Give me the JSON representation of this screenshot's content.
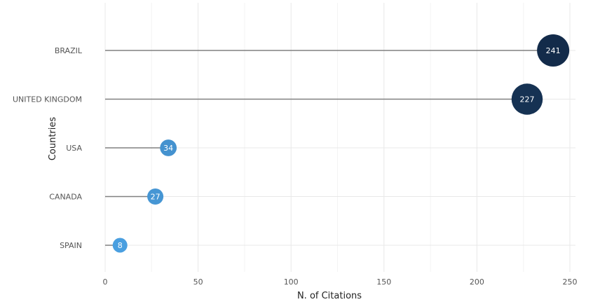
{
  "chart_data": {
    "type": "lollipop",
    "title": "",
    "xlabel": "N. of Citations",
    "ylabel": "Countries",
    "xlim": [
      0,
      250
    ],
    "x_ticks": [
      0,
      50,
      100,
      150,
      200,
      250
    ],
    "grid": true,
    "legend": "none",
    "categories": [
      "BRAZIL",
      "UNITED KINGDOM",
      "USA",
      "CANADA",
      "SPAIN"
    ],
    "values": [
      241,
      227,
      34,
      27,
      8
    ],
    "colors": {
      "high": "#132b4a",
      "low": "#4a9fe0",
      "stem": "#808080",
      "grid": "#e8e8e8"
    }
  }
}
